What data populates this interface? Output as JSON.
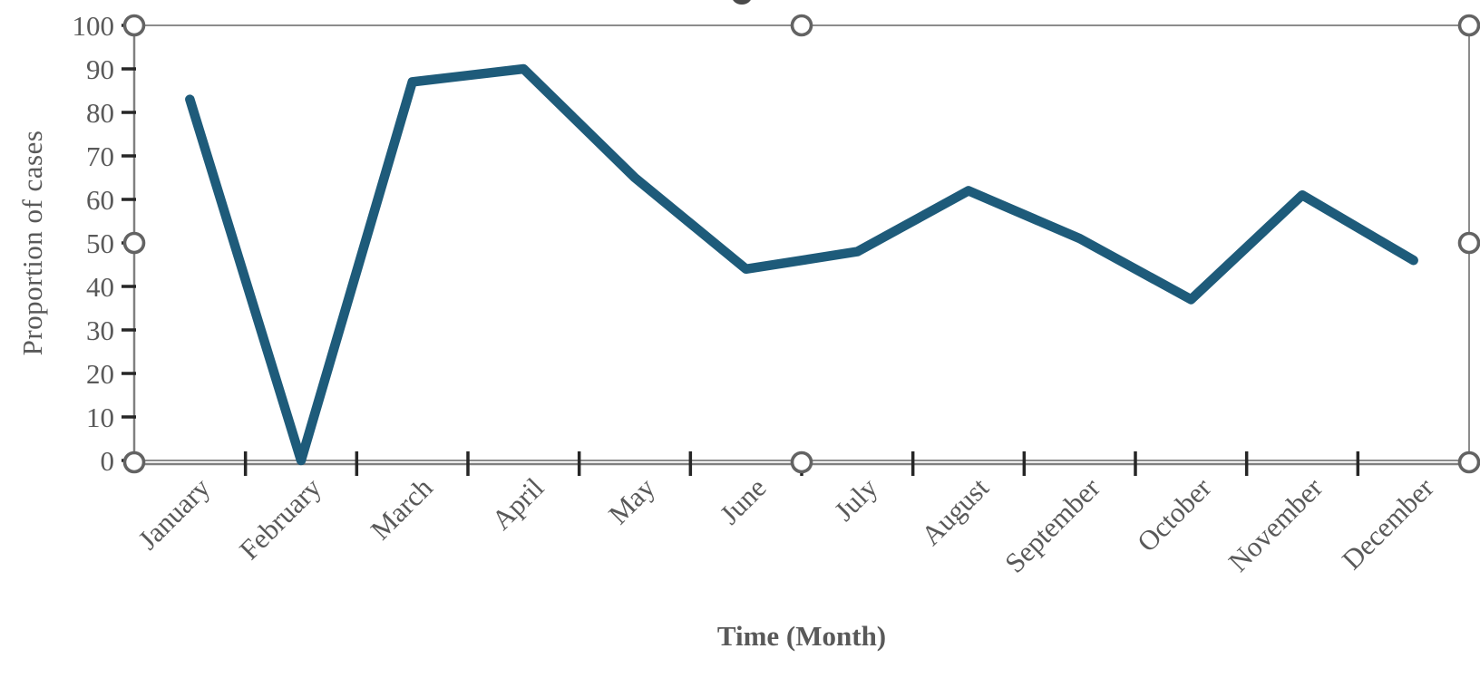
{
  "chart_data": {
    "type": "line",
    "categories": [
      "January",
      "February",
      "March",
      "April",
      "May",
      "June",
      "July",
      "August",
      "September",
      "October",
      "November",
      "December"
    ],
    "series": [
      {
        "name": "Proportion of cases",
        "values": [
          83,
          0,
          87,
          90,
          65,
          44,
          48,
          62,
          51,
          37,
          61,
          46
        ]
      }
    ],
    "title": "",
    "xlabel": "Time (Month)",
    "ylabel": "Proportion of cases",
    "ylim": [
      0,
      100
    ],
    "yticks": [
      "0",
      "10",
      "20",
      "30",
      "40",
      "50",
      "60",
      "70",
      "80",
      "90",
      "100"
    ],
    "grid": false,
    "legend": "none",
    "line_color": "#1E5B7A"
  },
  "colors": {
    "axis_line": "#808080",
    "tick_mark": "#262626",
    "axis_label": "#595959",
    "axis_title": "#595959",
    "selection_border": "#8C8C8C",
    "handle_stroke": "#636363",
    "handle_fill": "#FFFFFF",
    "clipped_title_glyph": "#4A4A4A"
  }
}
